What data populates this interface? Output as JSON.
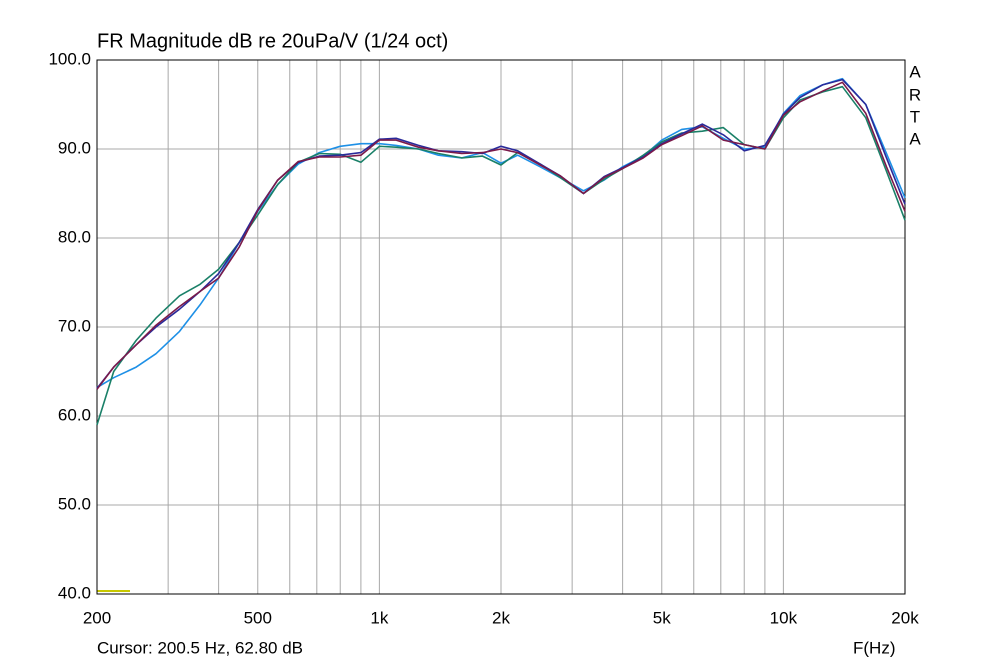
{
  "chart_data": {
    "type": "line",
    "title": "FR Magnitude dB re 20uPa/V (1/24 oct)",
    "side_label": [
      "A",
      "R",
      "T",
      "A"
    ],
    "x_label": "F(Hz)",
    "cursor_text": "Cursor: 200.5 Hz, 62.80 dB",
    "x_scale": "log",
    "grid": true,
    "xlim": [
      200,
      20000
    ],
    "ylim": [
      40,
      100
    ],
    "xticks": [
      200,
      500,
      {
        "value": 1000,
        "label": "1k"
      },
      {
        "value": 2000,
        "label": "2k"
      },
      {
        "value": 5000,
        "label": "5k"
      },
      {
        "value": 10000,
        "label": "10k"
      },
      {
        "value": 20000,
        "label": "20k"
      }
    ],
    "xminor_ticks": [
      300,
      400,
      600,
      700,
      800,
      900,
      3000,
      4000,
      6000,
      7000,
      8000,
      9000
    ],
    "yticks": [
      {
        "value": 40,
        "label": "40.0"
      },
      {
        "value": 50,
        "label": "50.0"
      },
      {
        "value": 60,
        "label": "60.0"
      },
      {
        "value": 70,
        "label": "70.0"
      },
      {
        "value": 80,
        "label": "80.0"
      },
      {
        "value": 90,
        "label": "90.0"
      },
      {
        "value": 100,
        "label": "100.0"
      }
    ],
    "x": [
      200,
      220,
      250,
      280,
      320,
      360,
      400,
      450,
      500,
      560,
      630,
      710,
      800,
      900,
      1000,
      1100,
      1250,
      1400,
      1600,
      1800,
      2000,
      2200,
      2500,
      2800,
      3200,
      3600,
      4000,
      4500,
      5000,
      5600,
      6300,
      7100,
      8000,
      9000,
      10000,
      11000,
      12500,
      14000,
      16000,
      18000,
      20000
    ],
    "series": [
      {
        "color": "#1e90e6",
        "values": [
          63.2,
          64.3,
          65.5,
          67,
          69.5,
          72.5,
          75.5,
          79.5,
          83,
          86,
          88.3,
          89.6,
          90.3,
          90.6,
          90.6,
          90.4,
          90.0,
          89.3,
          89.0,
          89.6,
          88.4,
          89.3,
          88.0,
          86.8,
          85.3,
          86.5,
          88.0,
          89.2,
          91.0,
          92.2,
          92.5,
          91.2,
          90.0,
          90.2,
          94.0,
          96.0,
          97.2,
          97.9,
          95.0,
          89.5,
          84.5
        ]
      },
      {
        "color": "#1a8068",
        "values": [
          59,
          65,
          68.5,
          71,
          73.5,
          74.8,
          76.5,
          79.5,
          82.6,
          86,
          88.5,
          89.5,
          89.4,
          88.5,
          90.3,
          90.2,
          90,
          89.5,
          89.0,
          89.2,
          88.2,
          89.6,
          88.3,
          86.8,
          85.0,
          86.6,
          87.8,
          89.3,
          90.8,
          91.8,
          92.0,
          92.4,
          90.5,
          90.0,
          93.5,
          95.5,
          96.4,
          97.0,
          93.5,
          87.5,
          82
        ]
      },
      {
        "color": "#2a2a9a",
        "values": [
          63.1,
          65.5,
          68,
          70,
          72,
          74,
          76,
          79.5,
          83.2,
          86.5,
          88.5,
          89.2,
          89.3,
          89.6,
          91.1,
          91.2,
          90.4,
          89.8,
          89.7,
          89.5,
          90.3,
          89.8,
          88.3,
          87.0,
          85.0,
          86.9,
          87.9,
          89.1,
          90.6,
          91.7,
          92.8,
          91.6,
          89.8,
          90.4,
          93.9,
          95.8,
          97.2,
          97.8,
          95,
          89,
          83.8
        ]
      },
      {
        "color": "#7a1a4a",
        "values": [
          63,
          65.5,
          68,
          70.2,
          72.3,
          74,
          75.5,
          79,
          83.1,
          86.5,
          88.6,
          89.1,
          89.1,
          89.3,
          91.0,
          91,
          90.2,
          89.8,
          89.5,
          89.6,
          90,
          89.6,
          88.2,
          87,
          85,
          86.8,
          87.8,
          89,
          90.5,
          91.5,
          92.6,
          91,
          90.5,
          90,
          93.8,
          95.3,
          96.5,
          97.5,
          94,
          88,
          83
        ]
      }
    ]
  }
}
